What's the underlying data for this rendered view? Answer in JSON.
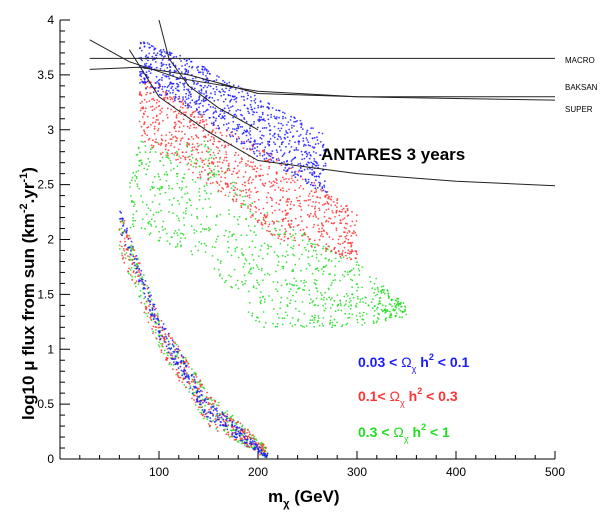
{
  "chart_data": {
    "type": "scatter",
    "xlabel": "m_χ (GeV)",
    "ylabel": "log10 μ flux from sun (km^-2.yr^-1)",
    "xlim": [
      0,
      500
    ],
    "ylim": [
      0,
      4
    ],
    "x_ticks": [
      "100",
      "200",
      "300",
      "400",
      "500"
    ],
    "y_ticks": [
      "0",
      "0.5",
      "1",
      "1.5",
      "2",
      "2.5",
      "3",
      "3.5",
      "4"
    ],
    "grid": false,
    "reference_curves": [
      {
        "name": "MACRO",
        "points": [
          [
            30,
            3.65
          ],
          [
            100,
            3.65
          ],
          [
            200,
            3.65
          ],
          [
            300,
            3.65
          ],
          [
            400,
            3.65
          ],
          [
            500,
            3.65
          ]
        ]
      },
      {
        "name": "BAKSAN",
        "points": [
          [
            30,
            3.55
          ],
          [
            80,
            3.57
          ],
          [
            130,
            3.5
          ],
          [
            200,
            3.33
          ],
          [
            300,
            3.3
          ],
          [
            400,
            3.3
          ],
          [
            500,
            3.3
          ]
        ]
      },
      {
        "name": "SUPER",
        "points": [
          [
            30,
            3.82
          ],
          [
            70,
            3.62
          ],
          [
            120,
            3.47
          ],
          [
            200,
            3.35
          ],
          [
            300,
            3.3
          ],
          [
            500,
            3.27
          ]
        ]
      },
      {
        "name": "ANTARES 3 years",
        "points": [
          [
            70,
            3.73
          ],
          [
            100,
            3.3
          ],
          [
            150,
            2.98
          ],
          [
            200,
            2.72
          ],
          [
            300,
            2.6
          ],
          [
            400,
            2.53
          ],
          [
            500,
            2.49
          ]
        ]
      }
    ],
    "curve_labels": [
      "MACRO",
      "BAKSAN",
      "SUPER",
      "ANTARES 3 years"
    ],
    "unlabeled_curve": {
      "points": [
        [
          100,
          4.0
        ],
        [
          110,
          3.65
        ],
        [
          130,
          3.4
        ],
        [
          160,
          3.2
        ],
        [
          200,
          3.0
        ]
      ]
    },
    "series": [
      {
        "name": "0.03 < Ω_χ h² < 0.1",
        "color": "#1a1aff",
        "regions": [
          {
            "x_range": [
              80,
              270
            ],
            "y_top": [
              [
                80,
                3.82
              ],
              [
                130,
                3.65
              ],
              [
                200,
                3.3
              ],
              [
                270,
                2.95
              ]
            ],
            "y_bottom": [
              [
                80,
                3.4
              ],
              [
                130,
                3.2
              ],
              [
                200,
                2.75
              ],
              [
                270,
                2.4
              ]
            ]
          },
          {
            "x_range": [
              60,
              210
            ],
            "y_top": [
              [
                60,
                2.3
              ],
              [
                100,
                1.3
              ],
              [
                150,
                0.55
              ],
              [
                210,
                0.05
              ]
            ],
            "y_bottom": [
              [
                60,
                2.1
              ],
              [
                100,
                1.1
              ],
              [
                150,
                0.35
              ],
              [
                210,
                0.0
              ]
            ]
          }
        ]
      },
      {
        "name": "0.1< Ω_χ h² < 0.3",
        "color": "#ff3333",
        "regions": [
          {
            "x_range": [
              80,
              300
            ],
            "y_top": [
              [
                80,
                3.55
              ],
              [
                150,
                3.1
              ],
              [
                220,
                2.75
              ],
              [
                300,
                2.25
              ]
            ],
            "y_bottom": [
              [
                80,
                2.9
              ],
              [
                150,
                2.5
              ],
              [
                220,
                2.0
              ],
              [
                300,
                1.8
              ]
            ]
          },
          {
            "x_range": [
              60,
              210
            ],
            "y_top": [
              [
                60,
                2.3
              ],
              [
                100,
                1.3
              ],
              [
                150,
                0.6
              ],
              [
                210,
                0.1
              ]
            ],
            "y_bottom": [
              [
                60,
                1.9
              ],
              [
                100,
                1.0
              ],
              [
                150,
                0.3
              ],
              [
                210,
                0.0
              ]
            ]
          }
        ]
      },
      {
        "name": "0.3 < Ω_χ h² < 1",
        "color": "#22dd22",
        "regions": [
          {
            "x_range": [
              70,
              350
            ],
            "y_top": [
              [
                70,
                2.9
              ],
              [
                150,
                2.9
              ],
              [
                200,
                2.3
              ],
              [
                300,
                1.8
              ],
              [
                350,
                1.4
              ]
            ],
            "y_bottom": [
              [
                70,
                2.1
              ],
              [
                150,
                1.8
              ],
              [
                200,
                1.2
              ],
              [
                300,
                1.2
              ],
              [
                350,
                1.3
              ]
            ]
          },
          {
            "x_range": [
              60,
              210
            ],
            "y_top": [
              [
                60,
                2.3
              ],
              [
                100,
                1.3
              ],
              [
                150,
                0.6
              ],
              [
                210,
                0.1
              ]
            ],
            "y_bottom": [
              [
                60,
                1.9
              ],
              [
                100,
                1.0
              ],
              [
                150,
                0.3
              ],
              [
                210,
                0.0
              ]
            ]
          }
        ]
      }
    ],
    "legend": {
      "placement": "bottom-right",
      "entries": [
        {
          "parts": [
            "0.03 < ",
            "Ω",
            "χ",
            " h",
            "2",
            " < 0.1"
          ],
          "color": "#1a1aff"
        },
        {
          "parts": [
            "0.1< ",
            "Ω",
            "χ",
            " h",
            "2",
            " < 0.3"
          ],
          "color": "#ff3333"
        },
        {
          "parts": [
            "0.3 < ",
            "Ω",
            "χ",
            " h",
            "2",
            " < 1"
          ],
          "color": "#22dd22"
        }
      ]
    },
    "axis_title": {
      "x_main": "m",
      "x_sub": "χ",
      "x_unit": " (GeV)",
      "y_main": "log10  μ flux from sun  (km",
      "y_sup1": "-2",
      "y_mid": ".yr",
      "y_sup2": "-1",
      "y_end": ")"
    }
  }
}
